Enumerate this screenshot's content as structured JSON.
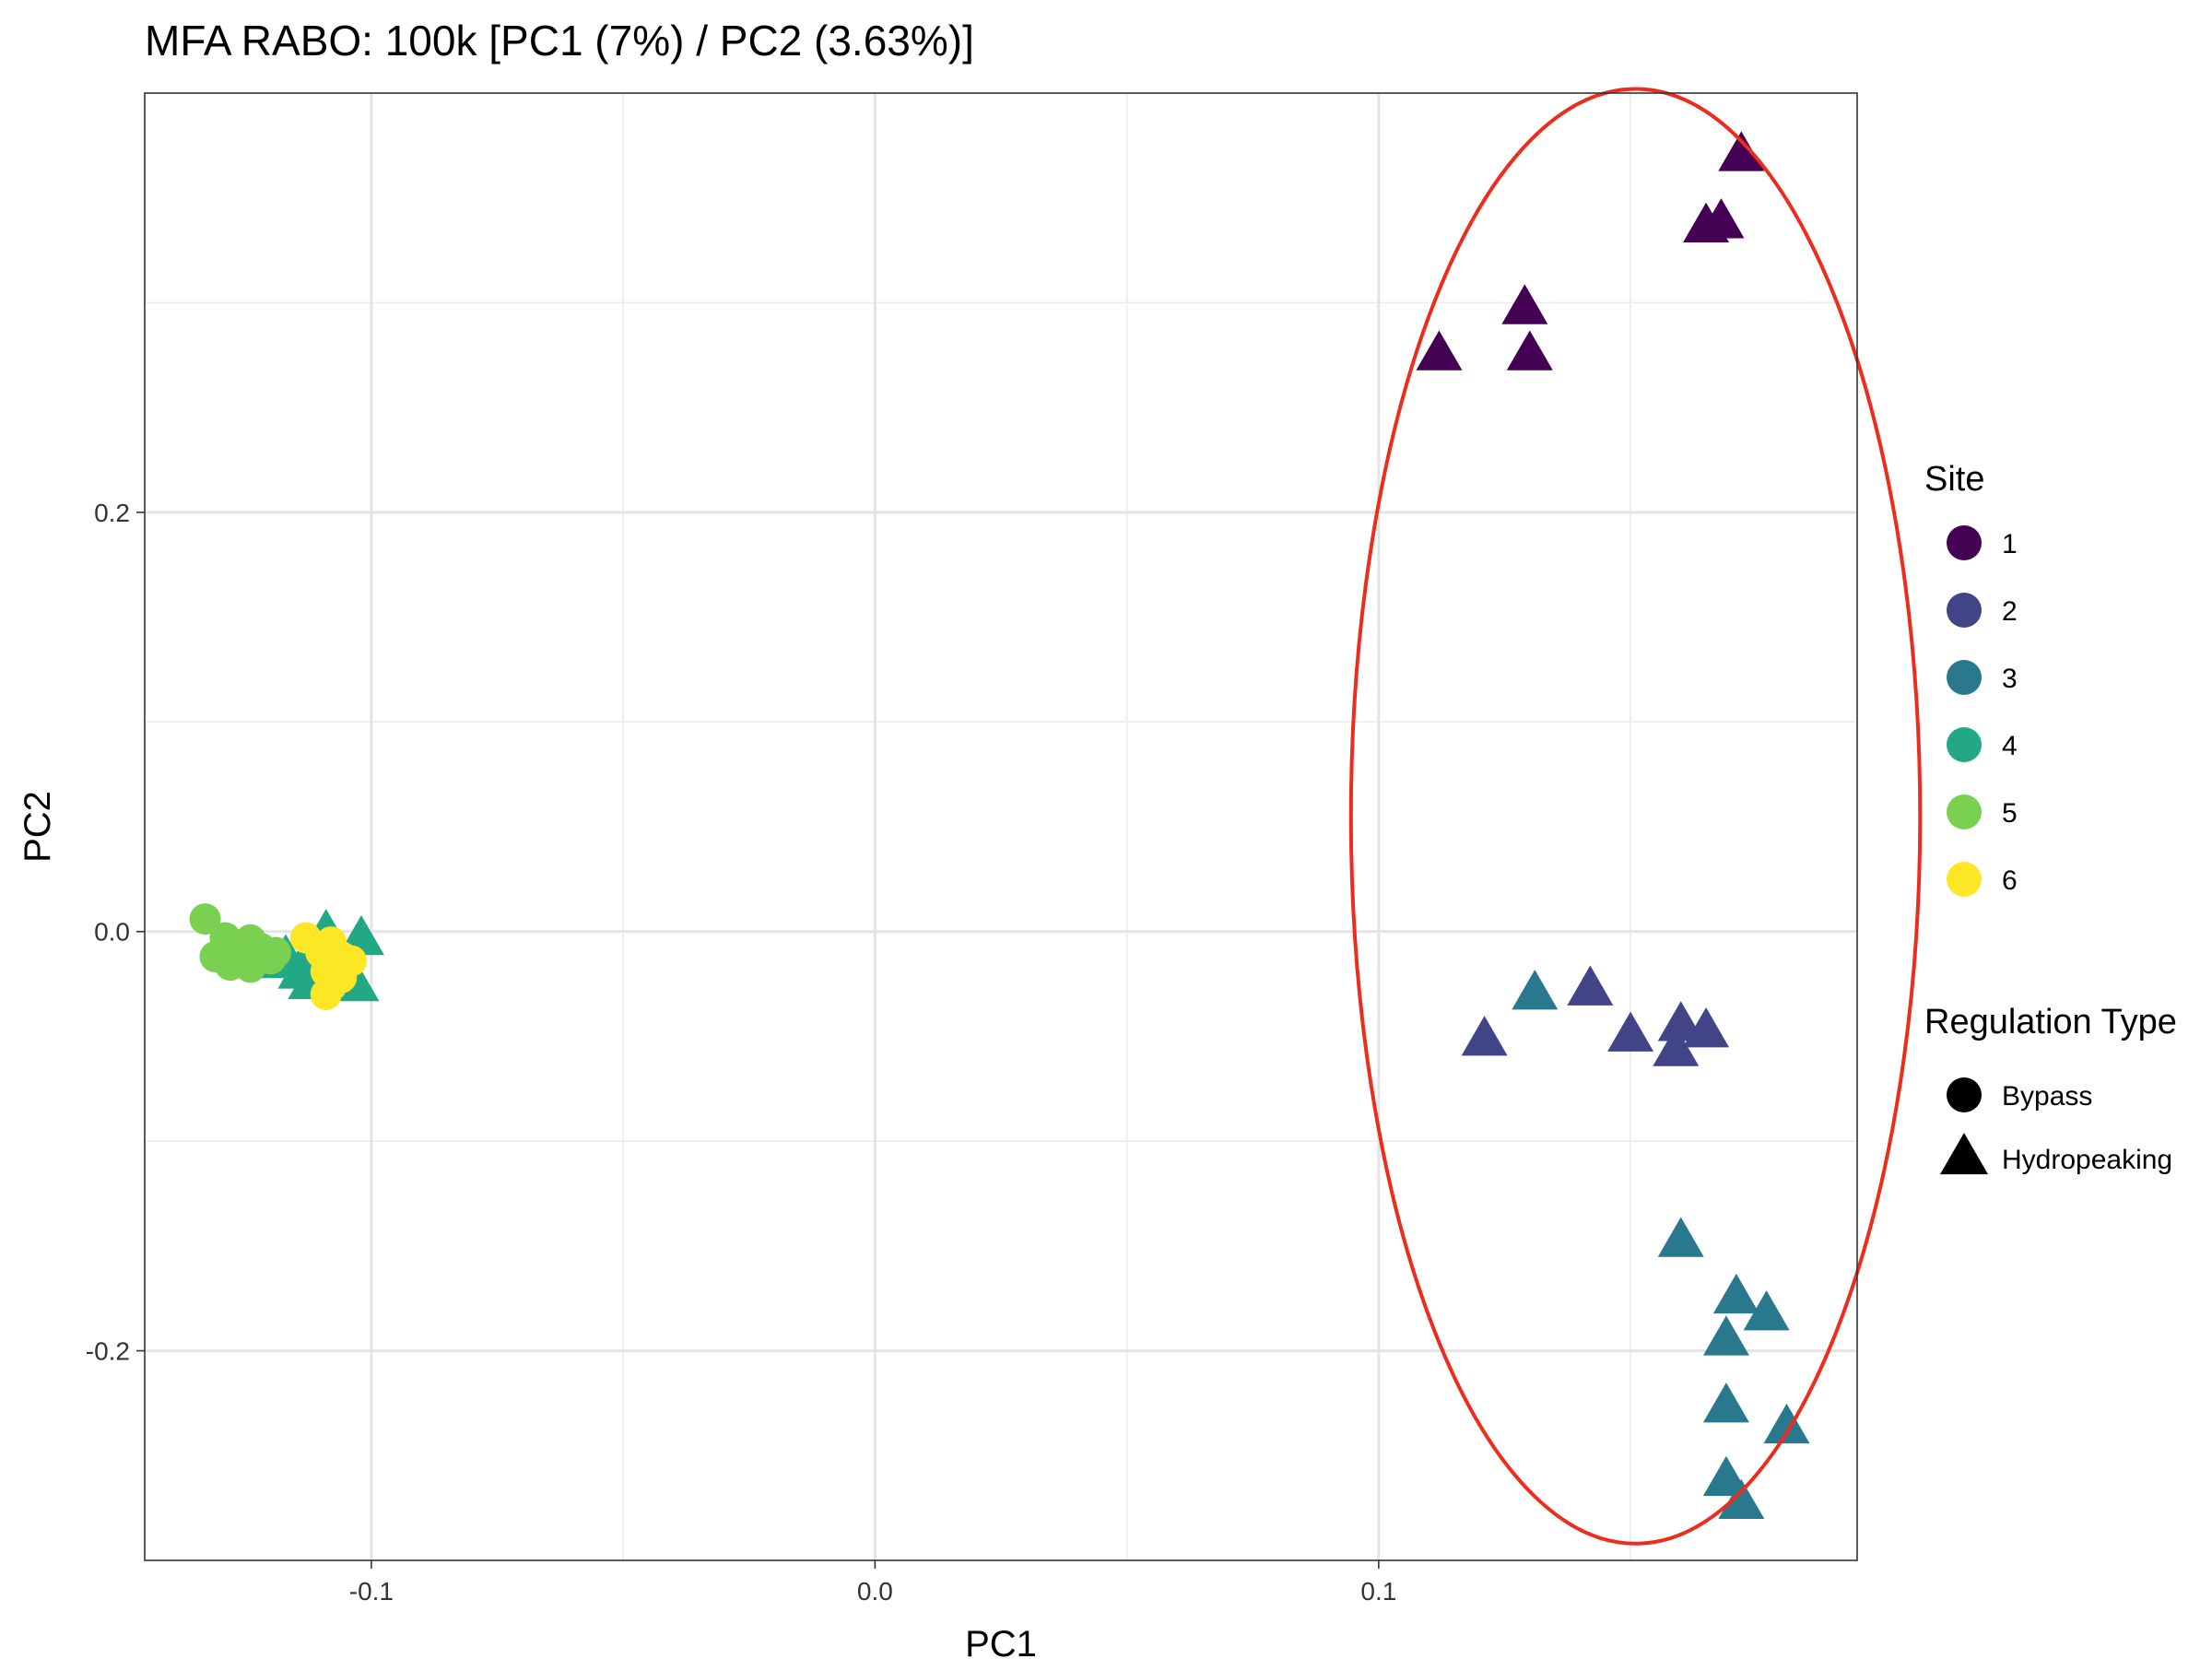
{
  "chart_data": {
    "type": "scatter",
    "title": "MFA RABO: 100k [PC1 (7%) / PC2 (3.63%)]",
    "xlabel": "PC1",
    "ylabel": "PC2",
    "xlim": [
      -0.145,
      0.195
    ],
    "ylim": [
      -0.3,
      0.4
    ],
    "xticks": [
      -0.1,
      0.0,
      0.1
    ],
    "xtick_labels": [
      "-0.1",
      "0.0",
      "0.1"
    ],
    "yticks": [
      -0.2,
      0.0,
      0.2
    ],
    "ytick_labels": [
      "-0.2",
      "0.0",
      "0.2"
    ],
    "grid": true,
    "legend_position": "right",
    "legends": {
      "site": {
        "title": "Site",
        "entries": [
          {
            "label": "1",
            "color": "#440154"
          },
          {
            "label": "2",
            "color": "#414487"
          },
          {
            "label": "3",
            "color": "#2A788E"
          },
          {
            "label": "4",
            "color": "#22A884"
          },
          {
            "label": "5",
            "color": "#7AD151"
          },
          {
            "label": "6",
            "color": "#FDE725"
          }
        ]
      },
      "regulation_type": {
        "title": "Regulation Type",
        "entries": [
          {
            "label": "Bypass",
            "shape": "circle"
          },
          {
            "label": "Hydropeaking",
            "shape": "triangle"
          }
        ]
      }
    },
    "annotation": {
      "type": "ellipse",
      "color": "#EE2C1E",
      "cx": 0.151,
      "cy": 0.055,
      "rx": 0.0565,
      "ry": 0.347
    },
    "series": [
      {
        "site": "1",
        "shape": "triangle",
        "points": [
          [
            0.172,
            0.37
          ],
          [
            0.168,
            0.338
          ],
          [
            0.165,
            0.336
          ],
          [
            0.129,
            0.297
          ],
          [
            0.112,
            0.275
          ],
          [
            0.13,
            0.275
          ]
        ]
      },
      {
        "site": "2",
        "shape": "triangle",
        "points": [
          [
            0.142,
            -0.028
          ],
          [
            0.16,
            -0.045
          ],
          [
            0.165,
            -0.048
          ],
          [
            0.15,
            -0.05
          ],
          [
            0.121,
            -0.052
          ],
          [
            0.159,
            -0.057
          ]
        ]
      },
      {
        "site": "3",
        "shape": "triangle",
        "points": [
          [
            0.131,
            -0.03
          ],
          [
            0.16,
            -0.148
          ],
          [
            0.171,
            -0.175
          ],
          [
            0.177,
            -0.183
          ],
          [
            0.169,
            -0.195
          ],
          [
            0.169,
            -0.227
          ],
          [
            0.181,
            -0.237
          ],
          [
            0.169,
            -0.262
          ],
          [
            0.172,
            -0.273
          ]
        ]
      },
      {
        "site": "4",
        "shape": "triangle",
        "points": [
          [
            -0.109,
            -0.001
          ],
          [
            -0.102,
            -0.004
          ],
          [
            -0.112,
            -0.01
          ],
          [
            -0.117,
            -0.013
          ],
          [
            -0.106,
            -0.016
          ],
          [
            -0.12,
            -0.015
          ],
          [
            -0.114,
            -0.02
          ],
          [
            -0.11,
            -0.022
          ],
          [
            -0.106,
            -0.024
          ],
          [
            -0.103,
            -0.026
          ],
          [
            -0.112,
            -0.025
          ]
        ]
      },
      {
        "site": "5",
        "shape": "circle",
        "points": [
          [
            -0.133,
            0.006
          ],
          [
            -0.129,
            -0.003
          ],
          [
            -0.127,
            -0.01
          ],
          [
            -0.124,
            -0.004
          ],
          [
            -0.131,
            -0.012
          ],
          [
            -0.125,
            -0.014
          ],
          [
            -0.122,
            -0.008
          ],
          [
            -0.119,
            -0.01
          ],
          [
            -0.128,
            -0.016
          ],
          [
            -0.124,
            -0.017
          ],
          [
            -0.12,
            -0.013
          ]
        ]
      },
      {
        "site": "6",
        "shape": "circle",
        "points": [
          [
            -0.113,
            -0.003
          ],
          [
            -0.108,
            -0.005
          ],
          [
            -0.11,
            -0.01
          ],
          [
            -0.106,
            -0.012
          ],
          [
            -0.107,
            -0.016
          ],
          [
            -0.109,
            -0.019
          ],
          [
            -0.106,
            -0.022
          ],
          [
            -0.108,
            -0.026
          ],
          [
            -0.109,
            -0.03
          ],
          [
            -0.104,
            -0.014
          ]
        ]
      }
    ]
  }
}
